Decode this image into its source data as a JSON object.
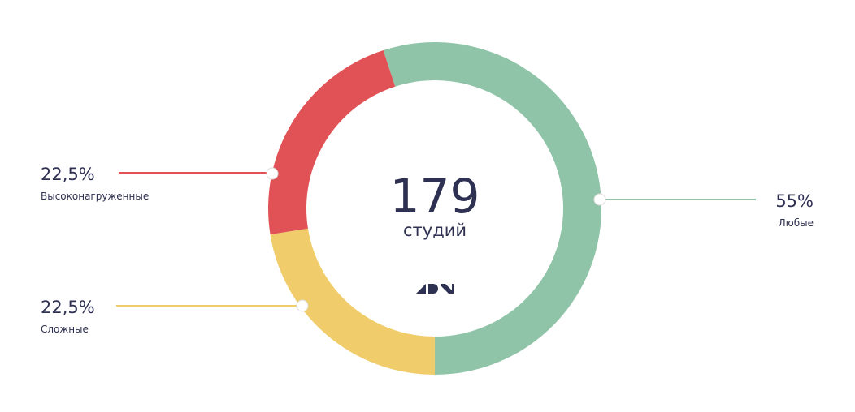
{
  "chart_data": {
    "type": "donut",
    "categories": [
      "Любые",
      "Сложные",
      "Высоконагруженные"
    ],
    "values": [
      55,
      22.5,
      22.5
    ],
    "value_labels": [
      "55%",
      "22,5%",
      "22,5%"
    ],
    "colors": [
      "#90c4a8",
      "#f0cd6a",
      "#e05256"
    ],
    "center_value": 179,
    "center_label": "студий"
  }
}
